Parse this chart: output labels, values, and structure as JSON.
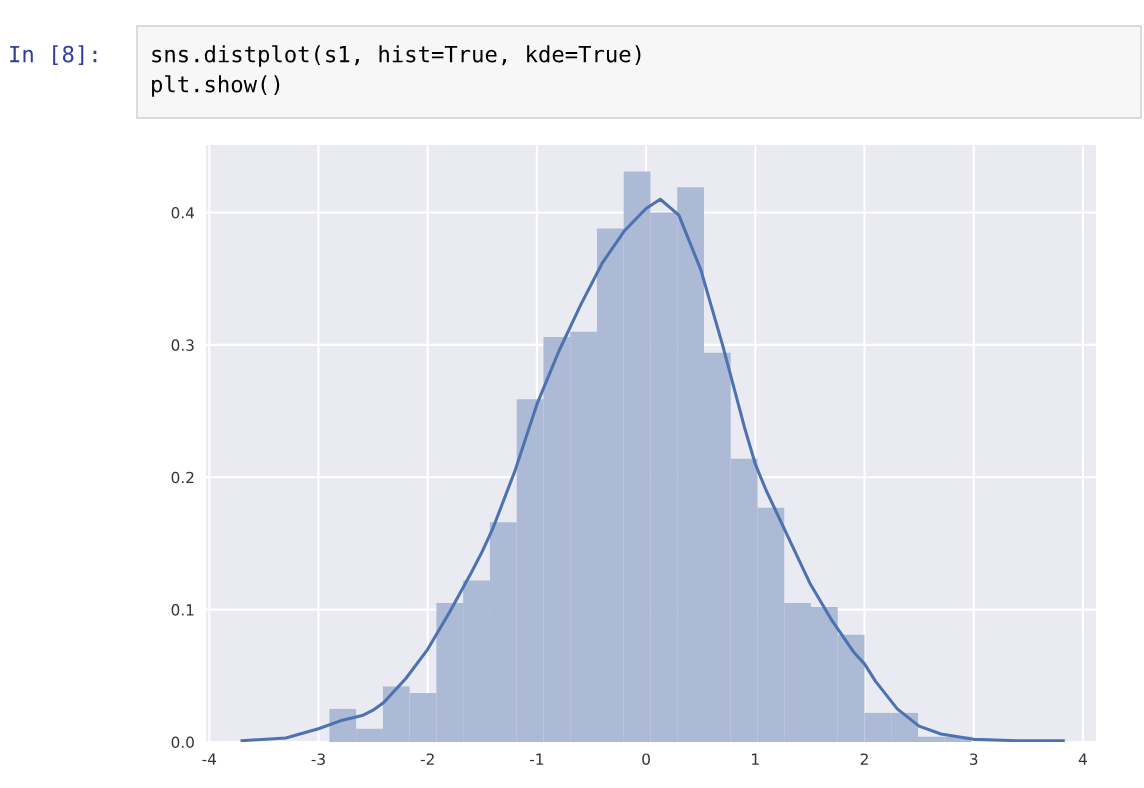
{
  "chart_data": {
    "type": "histogram",
    "annotations": [
      "In [8]:",
      "sns.distplot(s1, hist=True, kde=True)",
      "plt.show()"
    ],
    "bins": [
      -2.9,
      -2.655,
      -2.41,
      -2.165,
      -1.92,
      -1.675,
      -1.43,
      -1.185,
      -0.94,
      -0.695,
      -0.45,
      -0.205,
      0.04,
      0.285,
      0.53,
      0.775,
      1.02,
      1.265,
      1.51,
      1.755,
      2.0,
      2.245,
      2.49,
      2.735,
      2.98
    ],
    "values": [
      0.025,
      0.01,
      0.042,
      0.037,
      0.105,
      0.122,
      0.166,
      0.259,
      0.306,
      0.31,
      0.388,
      0.431,
      0.4,
      0.419,
      0.294,
      0.214,
      0.177,
      0.105,
      0.102,
      0.081,
      0.022,
      0.022,
      0.004,
      0.004
    ],
    "color": "#adbad6",
    "series": [
      {
        "type": "line",
        "color": "#4c72b0",
        "x": [
          -3.7,
          -3.3,
          -3.0,
          -2.8,
          -2.6,
          -2.5,
          -2.4,
          -2.2,
          -2.0,
          -1.8,
          -1.6,
          -1.5,
          -1.4,
          -1.2,
          -1.0,
          -0.8,
          -0.6,
          -0.4,
          -0.2,
          0.0,
          0.13,
          0.3,
          0.5,
          0.7,
          0.9,
          1.0,
          1.1,
          1.3,
          1.5,
          1.7,
          1.9,
          2.0,
          2.1,
          2.3,
          2.5,
          2.7,
          3.0,
          3.4,
          3.82
        ],
        "values": [
          0.001,
          0.003,
          0.01,
          0.016,
          0.02,
          0.024,
          0.03,
          0.048,
          0.07,
          0.098,
          0.128,
          0.144,
          0.162,
          0.205,
          0.255,
          0.295,
          0.33,
          0.362,
          0.386,
          0.403,
          0.41,
          0.398,
          0.357,
          0.3,
          0.238,
          0.21,
          0.19,
          0.155,
          0.12,
          0.092,
          0.068,
          0.059,
          0.046,
          0.025,
          0.012,
          0.006,
          0.002,
          0.001,
          0.001
        ]
      }
    ],
    "xlim": [
      -4.03,
      4.12
    ],
    "ylim": [
      0,
      0.451
    ],
    "xticks": [
      -4,
      -3,
      -2,
      -1,
      0,
      1,
      2,
      3,
      4
    ],
    "yticks": [
      {
        "value": 0,
        "label": "0.0"
      },
      {
        "value": 0.1,
        "label": "0.1"
      },
      {
        "value": 0.2,
        "label": "0.2"
      },
      {
        "value": 0.3,
        "label": "0.3"
      },
      {
        "value": 0.4,
        "label": "0.4"
      }
    ],
    "grid": true
  }
}
